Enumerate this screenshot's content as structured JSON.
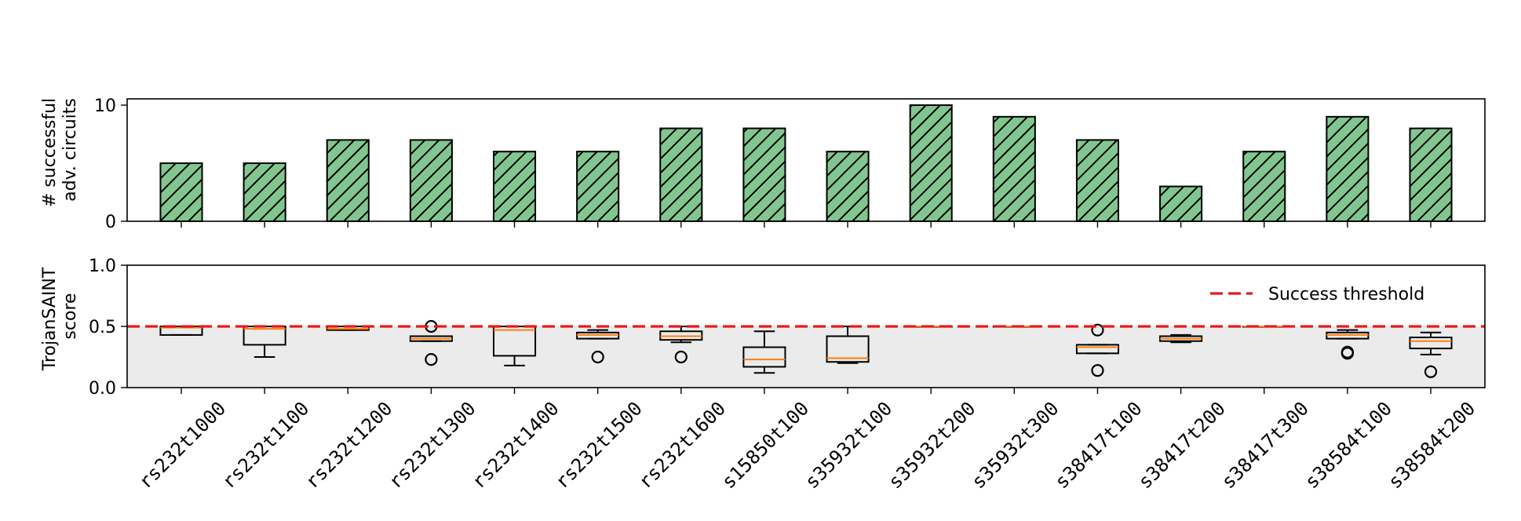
{
  "chart_data": [
    {
      "type": "bar",
      "panel": "top",
      "ylabel_lines": [
        "# successful",
        "adv. circuits"
      ],
      "ylim": [
        0,
        10
      ],
      "yticks": [
        0,
        10
      ],
      "hatch": "diagonal",
      "categories": [
        "rs232t1000",
        "rs232t1100",
        "rs232t1200",
        "rs232t1300",
        "rs232t1400",
        "rs232t1500",
        "rs232t1600",
        "s15850t100",
        "s35932t100",
        "s35932t200",
        "s35932t300",
        "s38417t100",
        "s38417t200",
        "s38417t300",
        "s38584t100",
        "s38584t200"
      ],
      "values": [
        5,
        5,
        7,
        7,
        6,
        6,
        8,
        8,
        6,
        10,
        9,
        7,
        3,
        6,
        9,
        8
      ],
      "color": "#82c68f",
      "grid": false
    },
    {
      "type": "box",
      "panel": "bottom",
      "ylabel_lines": [
        "TrojanSAINT",
        "score"
      ],
      "ylim": [
        0.0,
        1.0
      ],
      "yticks": [
        "0.0",
        "0.5",
        "1.0"
      ],
      "shaded_region": [
        0.0,
        0.5
      ],
      "shade_color": "#ebebeb",
      "median_color": "#ff7f0e",
      "categories": [
        "rs232t1000",
        "rs232t1100",
        "rs232t1200",
        "rs232t1300",
        "rs232t1400",
        "rs232t1500",
        "rs232t1600",
        "s15850t100",
        "s35932t100",
        "s35932t200",
        "s35932t300",
        "s38417t100",
        "s38417t200",
        "s38417t300",
        "s38584t100",
        "s38584t200"
      ],
      "boxes": [
        {
          "wlo": 0.43,
          "q1": 0.43,
          "med": 0.49,
          "q3": 0.5,
          "whi": 0.5,
          "fliers": []
        },
        {
          "wlo": 0.25,
          "q1": 0.35,
          "med": 0.48,
          "q3": 0.5,
          "whi": 0.5,
          "fliers": []
        },
        {
          "wlo": 0.47,
          "q1": 0.47,
          "med": 0.48,
          "q3": 0.5,
          "whi": 0.5,
          "fliers": []
        },
        {
          "wlo": 0.38,
          "q1": 0.38,
          "med": 0.4,
          "q3": 0.42,
          "whi": 0.42,
          "fliers": [
            0.23,
            0.5
          ]
        },
        {
          "wlo": 0.18,
          "q1": 0.26,
          "med": 0.47,
          "q3": 0.5,
          "whi": 0.5,
          "fliers": []
        },
        {
          "wlo": 0.4,
          "q1": 0.4,
          "med": 0.43,
          "q3": 0.45,
          "whi": 0.47,
          "fliers": [
            0.25
          ]
        },
        {
          "wlo": 0.37,
          "q1": 0.39,
          "med": 0.42,
          "q3": 0.46,
          "whi": 0.5,
          "fliers": [
            0.25
          ]
        },
        {
          "wlo": 0.12,
          "q1": 0.17,
          "med": 0.23,
          "q3": 0.33,
          "whi": 0.46,
          "fliers": []
        },
        {
          "wlo": 0.2,
          "q1": 0.21,
          "med": 0.24,
          "q3": 0.42,
          "whi": 0.5,
          "fliers": []
        },
        {
          "wlo": 0.5,
          "q1": 0.5,
          "med": 0.5,
          "q3": 0.5,
          "whi": 0.5,
          "fliers": []
        },
        {
          "wlo": 0.5,
          "q1": 0.5,
          "med": 0.5,
          "q3": 0.5,
          "whi": 0.5,
          "fliers": []
        },
        {
          "wlo": 0.28,
          "q1": 0.28,
          "med": 0.33,
          "q3": 0.35,
          "whi": 0.35,
          "fliers": [
            0.14,
            0.47
          ]
        },
        {
          "wlo": 0.37,
          "q1": 0.38,
          "med": 0.4,
          "q3": 0.42,
          "whi": 0.43,
          "fliers": []
        },
        {
          "wlo": 0.5,
          "q1": 0.5,
          "med": 0.5,
          "q3": 0.5,
          "whi": 0.5,
          "fliers": []
        },
        {
          "wlo": 0.4,
          "q1": 0.4,
          "med": 0.43,
          "q3": 0.45,
          "whi": 0.47,
          "fliers": [
            0.28,
            0.29
          ]
        },
        {
          "wlo": 0.27,
          "q1": 0.32,
          "med": 0.38,
          "q3": 0.41,
          "whi": 0.45,
          "fliers": [
            0.13
          ]
        }
      ],
      "threshold": {
        "value": 0.5,
        "label": "Success threshold",
        "color": "#e8191b",
        "style": "dashed"
      },
      "legend_placement": "upper-right",
      "grid": false
    }
  ]
}
